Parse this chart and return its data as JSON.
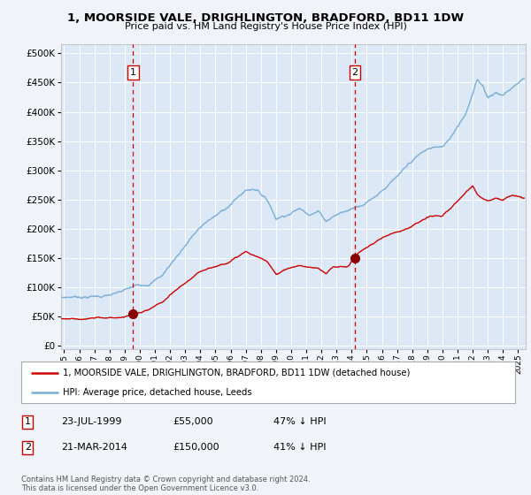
{
  "title": "1, MOORSIDE VALE, DRIGHLINGTON, BRADFORD, BD11 1DW",
  "subtitle": "Price paid vs. HM Land Registry's House Price Index (HPI)",
  "background_color": "#f0f4f8",
  "plot_bg_color": "#dce8f5",
  "sale1": {
    "date_num": 1999.56,
    "price": 55000,
    "label": "1",
    "date_str": "23-JUL-1999",
    "pct": "47% ↓ HPI"
  },
  "sale2": {
    "date_num": 2014.22,
    "price": 150000,
    "label": "2",
    "date_str": "21-MAR-2014",
    "pct": "41% ↓ HPI"
  },
  "hpi_color": "#7aaed6",
  "sale_color": "#cc0000",
  "marker_color": "#880000",
  "vline_color": "#cc0000",
  "yticks": [
    0,
    50000,
    100000,
    150000,
    200000,
    250000,
    300000,
    350000,
    400000,
    450000,
    500000
  ],
  "ylim": [
    -5000,
    515000
  ],
  "xlim_start": 1994.8,
  "xlim_end": 2025.5,
  "xticks": [
    1995,
    1996,
    1997,
    1998,
    1999,
    2000,
    2001,
    2002,
    2003,
    2004,
    2005,
    2006,
    2007,
    2008,
    2009,
    2010,
    2011,
    2012,
    2013,
    2014,
    2015,
    2016,
    2017,
    2018,
    2019,
    2020,
    2021,
    2022,
    2023,
    2024,
    2025
  ],
  "legend_label_red": "1, MOORSIDE VALE, DRIGHLINGTON, BRADFORD, BD11 1DW (detached house)",
  "legend_label_blue": "HPI: Average price, detached house, Leeds",
  "footnote": "Contains HM Land Registry data © Crown copyright and database right 2024.\nThis data is licensed under the Open Government Licence v3.0.",
  "table_rows": [
    {
      "num": "1",
      "date": "23-JUL-1999",
      "price": "£55,000",
      "pct": "47% ↓ HPI"
    },
    {
      "num": "2",
      "date": "21-MAR-2014",
      "price": "£150,000",
      "pct": "41% ↓ HPI"
    }
  ]
}
